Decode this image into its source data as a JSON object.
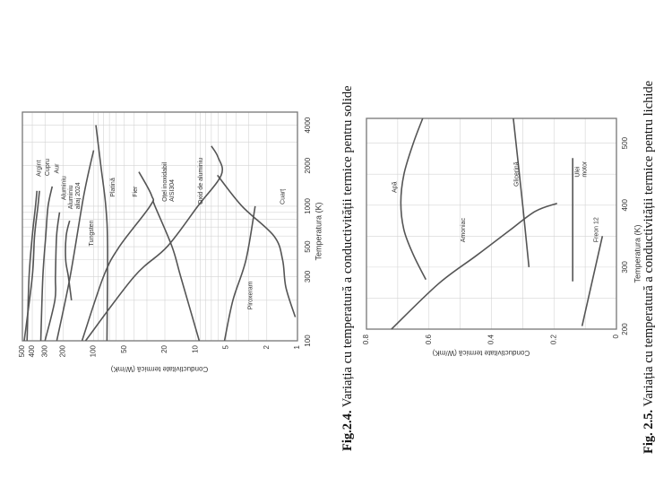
{
  "captions": [
    {
      "number": "Fig.2.4.",
      "text": "Variația cu temperatură a conductivității termice pentru solide"
    },
    {
      "number": "Fig. 2.5.",
      "text": "Variația cu temperatură a conductivității termice pentru lichide"
    }
  ],
  "chart_data": [
    {
      "type": "line",
      "xlabel": "Temperatura (K)",
      "ylabel": "Conductivitate termică (W/mK)",
      "xscale": "log",
      "yscale": "log",
      "xlim": [
        100,
        5000
      ],
      "ylim": [
        1,
        500
      ],
      "xticks": [
        100,
        300,
        500,
        1000,
        2000,
        4000
      ],
      "yticks": [
        500,
        400,
        300,
        200,
        100,
        50,
        20,
        10,
        5,
        2,
        1
      ],
      "grid": true,
      "line_color": "#555555",
      "series": [
        {
          "name": "Argint",
          "points": [
            [
              100,
              450
            ],
            [
              300,
              430
            ],
            [
              600,
              400
            ],
            [
              1000,
              372
            ],
            [
              1300,
              360
            ]
          ]
        },
        {
          "name": "Cupru",
          "points": [
            [
              100,
              480
            ],
            [
              300,
              400
            ],
            [
              600,
              380
            ],
            [
              1000,
              352
            ],
            [
              1300,
              340
            ]
          ]
        },
        {
          "name": "Aur",
          "points": [
            [
              100,
              330
            ],
            [
              300,
              315
            ],
            [
              600,
              295
            ],
            [
              1000,
              280
            ],
            [
              1400,
              255
            ]
          ]
        },
        {
          "name": "Aluminiu",
          "points": [
            [
              100,
              300
            ],
            [
              200,
              240
            ],
            [
              300,
              237
            ],
            [
              600,
              231
            ],
            [
              900,
              216
            ]
          ]
        },
        {
          "name": "Aluminiu\naliaj 2024",
          "points": [
            [
              200,
              165
            ],
            [
              300,
              177
            ],
            [
              400,
              188
            ],
            [
              600,
              186
            ],
            [
              780,
              172
            ]
          ]
        },
        {
          "name": "Tungsten",
          "points": [
            [
              100,
              230
            ],
            [
              300,
              170
            ],
            [
              1200,
              125
            ],
            [
              2600,
              100
            ]
          ]
        },
        {
          "name": "Platină",
          "points": [
            [
              100,
              74
            ],
            [
              500,
              73
            ],
            [
              1000,
              76
            ],
            [
              2000,
              85
            ],
            [
              4000,
              95
            ]
          ]
        },
        {
          "name": "Fier",
          "points": [
            [
              100,
              130
            ],
            [
              300,
              80
            ],
            [
              500,
              56
            ],
            [
              1000,
              28
            ],
            [
              1200,
              27
            ],
            [
              1800,
              36
            ]
          ]
        },
        {
          "name": "Oțel inoxidabil\nAISI304",
          "points": [
            [
              100,
              9.2
            ],
            [
              300,
              14
            ],
            [
              500,
              17
            ],
            [
              1000,
              25
            ],
            [
              1100,
              26
            ]
          ]
        },
        {
          "name": "Oxid de aluminiu",
          "points": [
            [
              100,
              120
            ],
            [
              300,
              40
            ],
            [
              500,
              19
            ],
            [
              1000,
              9.5
            ],
            [
              1700,
              5.6
            ],
            [
              2300,
              6
            ],
            [
              2800,
              7
            ]
          ]
        },
        {
          "name": "Cuarț",
          "points": [
            [
              150,
              1.05
            ],
            [
              250,
              1.3
            ],
            [
              400,
              1.4
            ],
            [
              600,
              1.7
            ],
            [
              1000,
              3.5
            ],
            [
              1700,
              6.1
            ]
          ]
        },
        {
          "name": "Piroxeram",
          "points": [
            [
              100,
              5.2
            ],
            [
              200,
              4.3
            ],
            [
              400,
              3.2
            ],
            [
              1000,
              2.6
            ]
          ]
        }
      ]
    },
    {
      "type": "line",
      "xlabel": "Temperatura (K)",
      "ylabel": "Conductivitate termică (W/mK)",
      "xscale": "linear",
      "yscale": "linear",
      "xlim": [
        200,
        540
      ],
      "ylim": [
        0,
        0.8
      ],
      "xticks": [
        200,
        300,
        400,
        500
      ],
      "yticks": [
        0,
        0.2,
        0.4,
        0.6,
        0.8
      ],
      "grid": true,
      "line_color": "#555555",
      "series": [
        {
          "name": "Apă",
          "points": [
            [
              280,
              0.61
            ],
            [
              320,
              0.65
            ],
            [
              360,
              0.68
            ],
            [
              404,
              0.69
            ],
            [
              450,
              0.68
            ],
            [
              500,
              0.65
            ],
            [
              540,
              0.62
            ]
          ]
        },
        {
          "name": "Glicerină",
          "points": [
            [
              300,
              0.28
            ],
            [
              400,
              0.3
            ],
            [
              540,
              0.33
            ]
          ]
        },
        {
          "name": "Amoniac",
          "points": [
            [
              200,
              0.72
            ],
            [
              273,
              0.57
            ],
            [
              318,
              0.45
            ],
            [
              360,
              0.34
            ],
            [
              390,
              0.26
            ],
            [
              403,
              0.19
            ]
          ]
        },
        {
          "name": "Ulei\nmotor",
          "points": [
            [
              277,
              0.14
            ],
            [
              476,
              0.14
            ]
          ]
        },
        {
          "name": "Freon 12",
          "points": [
            [
              205,
              0.11
            ],
            [
              350,
              0.045
            ]
          ]
        }
      ]
    }
  ]
}
